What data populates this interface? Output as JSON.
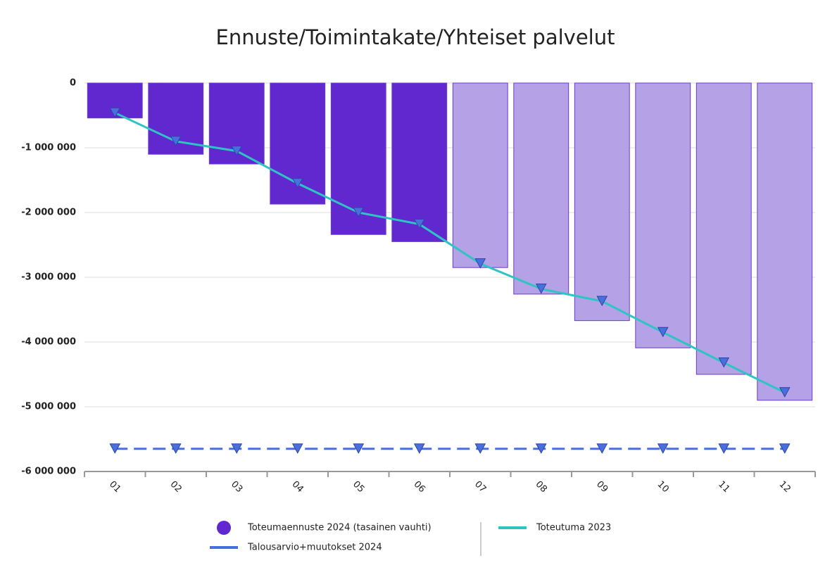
{
  "chart_data": {
    "type": "combo",
    "title": "Ennuste/Toimintakate/Yhteiset palvelut",
    "categories": [
      "01",
      "02",
      "03",
      "04",
      "05",
      "06",
      "07",
      "08",
      "09",
      "10",
      "11",
      "12"
    ],
    "ylim": [
      -6000000,
      0
    ],
    "yticks": [
      0,
      {
        "value": -1000000,
        "label": "-1 000 000"
      },
      {
        "value": -2000000,
        "label": "-2 000 000"
      },
      {
        "value": -3000000,
        "label": "-3 000 000"
      },
      {
        "value": -4000000,
        "label": "-4 000 000"
      },
      {
        "value": -5000000,
        "label": "-5 000 000"
      },
      {
        "value": -6000000,
        "label": "-6 000 000"
      }
    ],
    "grid": true,
    "legend": "bottom",
    "series": [
      {
        "name": "Toteumaennuste 2024 (tasainen vauhti)",
        "type": "bar",
        "color": "#6128d0",
        "colors": [
          "#6128d0",
          "#6128d0",
          "#6128d0",
          "#6128d0",
          "#6128d0",
          "#6128d0",
          "#b4a1e6",
          "#b4a1e6",
          "#b4a1e6",
          "#b4a1e6",
          "#b4a1e6",
          "#b4a1e6"
        ],
        "values": [
          -540000,
          -1100000,
          -1250000,
          -1870000,
          -2340000,
          -2450000,
          -2850000,
          -3260000,
          -3670000,
          -4090000,
          -4500000,
          -4900000
        ]
      },
      {
        "name": "Talousarvio+muutokset 2024",
        "type": "line",
        "color": "#4a6fdc",
        "line_style": "dashed",
        "values": [
          -5650000,
          -5650000,
          -5650000,
          -5650000,
          -5650000,
          -5650000,
          -5650000,
          -5650000,
          -5650000,
          -5650000,
          -5650000,
          -5650000
        ]
      },
      {
        "name": "Toteutuma 2023",
        "type": "line",
        "color": "#2ec4c4",
        "line_style": "solid",
        "values": [
          -460000,
          -900000,
          -1050000,
          -1550000,
          -2000000,
          -2180000,
          -2790000,
          -3180000,
          -3370000,
          -3850000,
          -4320000,
          -4780000
        ]
      }
    ]
  }
}
